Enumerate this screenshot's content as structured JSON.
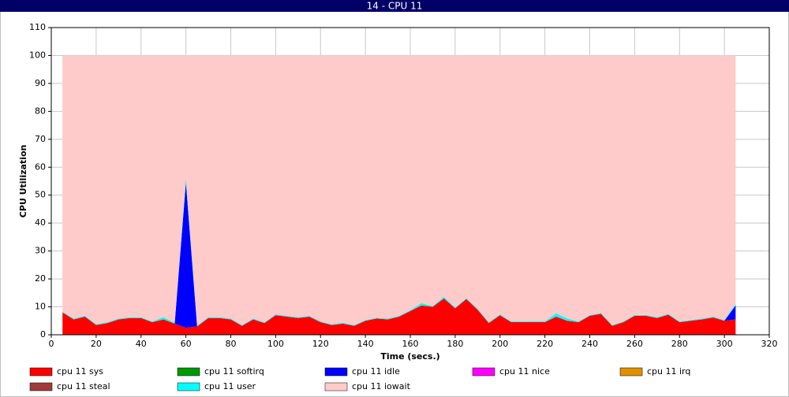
{
  "chart_data": {
    "type": "stacked_area",
    "title": "14 - CPU 11",
    "x_label": "Time (secs.)",
    "y_label": "CPU Utilization",
    "xlim": [
      0,
      320
    ],
    "xticks": [
      0,
      20,
      40,
      60,
      80,
      100,
      120,
      140,
      160,
      180,
      200,
      220,
      240,
      260,
      280,
      300,
      320
    ],
    "ylim": [
      0,
      110
    ],
    "yticks": [
      0,
      10,
      20,
      30,
      40,
      50,
      60,
      70,
      80,
      90,
      100,
      110
    ],
    "grid": true,
    "x": [
      5,
      10,
      15,
      20,
      25,
      30,
      35,
      40,
      45,
      50,
      55,
      60,
      65,
      70,
      75,
      80,
      85,
      90,
      95,
      100,
      105,
      110,
      115,
      120,
      125,
      130,
      135,
      140,
      145,
      150,
      155,
      160,
      165,
      170,
      175,
      180,
      185,
      190,
      195,
      200,
      205,
      210,
      215,
      220,
      225,
      230,
      235,
      240,
      245,
      250,
      255,
      260,
      265,
      270,
      275,
      280,
      285,
      290,
      295,
      300,
      305
    ],
    "series": [
      {
        "name": "cpu 11 sys",
        "color": "#ff0000",
        "values": [
          8,
          5.5,
          6.5,
          3.5,
          4.2,
          5.5,
          6,
          6,
          4.5,
          5.5,
          4,
          2.5,
          3,
          6,
          6,
          5.5,
          3.2,
          5.5,
          4.2,
          7,
          6.5,
          6,
          6.5,
          4.5,
          3.5,
          4,
          3.2,
          5,
          5.8,
          5.5,
          6.5,
          8.5,
          10.5,
          10,
          13,
          9.5,
          12.8,
          9,
          4.2,
          7,
          4.5,
          4.5,
          4.5,
          4.5,
          6.5,
          5,
          4.5,
          6.8,
          7.5,
          3.2,
          4.5,
          6.8,
          6.8,
          6,
          7.2,
          4.5,
          5,
          5.5,
          6.2,
          5,
          5.5
        ]
      },
      {
        "name": "cpu 11 softirq",
        "color": "#009900",
        "values": [
          0,
          0,
          0,
          0,
          0,
          0,
          0,
          0,
          0,
          0,
          0,
          0,
          0,
          0,
          0,
          0,
          0,
          0,
          0,
          0,
          0,
          0,
          0,
          0,
          0,
          0,
          0,
          0,
          0,
          0,
          0,
          0,
          0,
          0,
          0,
          0,
          0,
          0,
          0,
          0,
          0,
          0,
          0,
          0,
          0,
          0,
          0,
          0,
          0,
          0,
          0,
          0,
          0,
          0,
          0,
          0,
          0,
          0,
          0,
          0,
          0
        ]
      },
      {
        "name": "cpu 11 idle",
        "color": "#0000ff",
        "values": [
          0,
          0,
          0,
          0,
          0,
          0,
          0,
          0,
          0,
          0,
          0,
          52,
          0,
          0,
          0,
          0,
          0,
          0,
          0,
          0,
          0,
          0,
          0,
          0,
          0,
          0,
          0,
          0,
          0,
          0,
          0,
          0,
          0,
          0,
          0,
          0,
          0,
          0,
          0,
          0,
          0,
          0,
          0,
          0,
          0,
          0,
          0,
          0,
          0,
          0,
          0,
          0,
          0,
          0,
          0,
          0,
          0,
          0,
          0,
          0,
          5
        ]
      },
      {
        "name": "cpu 11 nice",
        "color": "#ff00ff",
        "values": [
          0,
          0,
          0,
          0,
          0,
          0,
          0,
          0,
          0,
          0,
          0,
          0,
          0,
          0,
          0,
          0,
          0,
          0,
          0,
          0,
          0,
          0,
          0,
          0,
          0,
          0,
          0,
          0,
          0,
          0,
          0,
          0,
          0,
          0,
          0,
          0,
          0,
          0,
          0,
          0,
          0,
          0,
          0,
          0,
          0,
          0,
          0,
          0,
          0,
          0,
          0,
          0,
          0,
          0,
          0,
          0,
          0,
          0,
          0,
          0,
          0
        ]
      },
      {
        "name": "cpu 11 irq",
        "color": "#e09000",
        "values": [
          0,
          0,
          0,
          0,
          0,
          0,
          0,
          0,
          0,
          0,
          0,
          0,
          0,
          0,
          0,
          0,
          0,
          0,
          0,
          0,
          0,
          0,
          0,
          0,
          0,
          0,
          0,
          0,
          0,
          0,
          0,
          0,
          0,
          0,
          0,
          0,
          0,
          0,
          0,
          0,
          0,
          0,
          0,
          0,
          0,
          0,
          0,
          0,
          0,
          0,
          0,
          0,
          0,
          0,
          0,
          0,
          0,
          0,
          0,
          0,
          0
        ]
      },
      {
        "name": "cpu 11 steal",
        "color": "#a03a3a",
        "values": [
          0,
          0,
          0,
          0,
          0,
          0,
          0,
          0,
          0,
          0,
          0,
          0,
          0,
          0,
          0,
          0,
          0,
          0,
          0,
          0,
          0,
          0,
          0,
          0,
          0,
          0,
          0,
          0,
          0,
          0,
          0,
          0,
          0,
          0,
          0,
          0,
          0,
          0,
          0,
          0,
          0,
          0,
          0,
          0,
          0,
          0,
          0,
          0,
          0,
          0,
          0,
          0,
          0,
          0,
          0,
          0,
          0,
          0,
          0,
          0,
          0
        ]
      },
      {
        "name": "cpu 11 user",
        "color": "#00ffff",
        "values": [
          0.3,
          0.3,
          0.3,
          0.3,
          0.3,
          0.3,
          0.3,
          0.3,
          0.3,
          0.8,
          0.3,
          1.5,
          0.3,
          0.3,
          0.3,
          0.3,
          0.3,
          0.3,
          0.3,
          0.3,
          0.3,
          0.3,
          0.3,
          0.3,
          0.3,
          0.3,
          0.3,
          0.3,
          0.3,
          0.3,
          0.3,
          0.3,
          0.8,
          0.3,
          0.6,
          0.3,
          0.3,
          0.3,
          0.3,
          0.3,
          0.3,
          0.3,
          0.3,
          0.3,
          1.2,
          0.8,
          0.3,
          0.3,
          0.3,
          0.3,
          0.3,
          0.3,
          0.3,
          0.3,
          0.3,
          0.3,
          0.3,
          0.3,
          0.3,
          0.3,
          0.5
        ]
      },
      {
        "name": "cpu 11 iowait",
        "color": "#ffcaca",
        "values": [
          91.7,
          94.2,
          93.2,
          96.2,
          95.5,
          94.2,
          93.7,
          93.7,
          95.2,
          93.7,
          95.7,
          44,
          96.7,
          93.7,
          93.7,
          94.2,
          96.5,
          94.2,
          95.5,
          92.7,
          93.2,
          93.7,
          93.2,
          95.2,
          96.2,
          95.7,
          96.5,
          94.7,
          93.9,
          94.2,
          93.2,
          91.2,
          88.7,
          89.7,
          86.4,
          90.2,
          86.9,
          90.7,
          95.5,
          92.7,
          95.2,
          95.2,
          95.2,
          95.2,
          92.3,
          94.2,
          95.2,
          92.9,
          92.2,
          96.5,
          95.2,
          92.9,
          92.9,
          93.7,
          92.5,
          95.2,
          94.7,
          94.2,
          93.5,
          94.7,
          89
        ]
      }
    ]
  }
}
